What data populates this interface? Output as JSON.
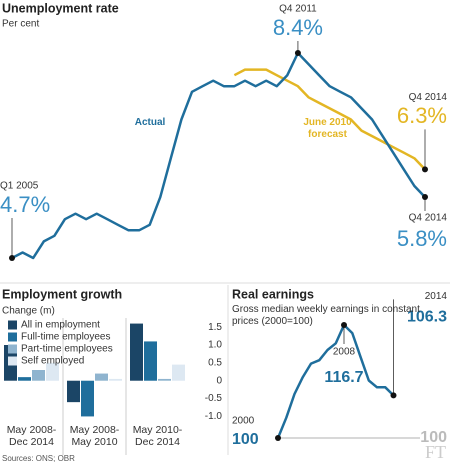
{
  "chart_data": [
    {
      "type": "line",
      "title": "Unemployment rate",
      "subtitle": "Per cent",
      "categories": [
        "Q1 2005",
        null,
        null,
        null,
        null,
        null,
        null,
        null,
        null,
        null,
        null,
        null,
        null,
        null,
        null,
        null,
        null,
        null,
        null,
        null,
        null,
        null,
        null,
        null,
        null,
        null,
        null,
        "Q4 2011",
        null,
        null,
        null,
        null,
        null,
        null,
        null,
        null,
        null,
        null,
        null,
        "Q4 2014"
      ],
      "series": [
        {
          "name": "Actual",
          "color": "#1f6e9c",
          "values": [
            4.7,
            4.8,
            4.7,
            5.0,
            5.1,
            5.4,
            5.5,
            5.4,
            5.5,
            5.4,
            5.3,
            5.2,
            5.2,
            5.3,
            5.8,
            6.5,
            7.2,
            7.7,
            7.8,
            7.9,
            7.8,
            7.8,
            7.9,
            7.8,
            7.9,
            7.8,
            8.0,
            8.4,
            8.2,
            8.0,
            7.8,
            7.7,
            7.6,
            7.4,
            7.2,
            6.9,
            6.6,
            6.3,
            6.0,
            5.8
          ],
          "value_labels": [
            "4.7%",
            null,
            null,
            null,
            null,
            null,
            null,
            null,
            null,
            null,
            null,
            null,
            null,
            null,
            null,
            null,
            null,
            null,
            null,
            null,
            null,
            null,
            null,
            null,
            null,
            null,
            null,
            "8.4%",
            null,
            null,
            null,
            null,
            null,
            null,
            null,
            null,
            null,
            null,
            null,
            "5.8%"
          ]
        },
        {
          "name": "June 2010 forecast",
          "color": "#e3b624",
          "values": [
            null,
            null,
            null,
            null,
            null,
            null,
            null,
            null,
            null,
            null,
            null,
            null,
            null,
            null,
            null,
            null,
            null,
            null,
            null,
            null,
            null,
            8.0,
            8.1,
            8.1,
            8.1,
            8.0,
            7.9,
            7.8,
            7.6,
            7.5,
            7.4,
            7.3,
            7.2,
            7.0,
            6.9,
            6.8,
            6.7,
            6.6,
            6.5,
            6.3
          ],
          "value_labels": [
            null,
            null,
            null,
            null,
            null,
            null,
            null,
            null,
            null,
            null,
            null,
            null,
            null,
            null,
            null,
            null,
            null,
            null,
            null,
            null,
            null,
            null,
            null,
            null,
            null,
            null,
            null,
            null,
            null,
            null,
            null,
            null,
            null,
            null,
            null,
            null,
            null,
            null,
            null,
            "6.3%"
          ]
        }
      ]
    },
    {
      "type": "bar",
      "title": "Employment growth",
      "y_label": "Change (m)",
      "categories": [
        "May 2008-Dec 2014",
        "May 2008-May 2010",
        "May 2010-Dec 2014"
      ],
      "series": [
        {
          "name": "All in employment",
          "color": "#1b4566",
          "values": [
            1.0,
            -0.6,
            1.6
          ]
        },
        {
          "name": "Full-time employees",
          "color": "#1f6e9c",
          "values": [
            0.1,
            -1.0,
            1.1
          ]
        },
        {
          "name": "Part-time employees",
          "color": "#8fb4cf",
          "values": [
            0.3,
            0.2,
            0.05
          ]
        },
        {
          "name": "Self employed",
          "color": "#dde8f2",
          "values": [
            0.5,
            0.05,
            0.45
          ]
        }
      ],
      "ylim": [
        -1.1,
        1.7
      ],
      "yticks": [
        1.5,
        {
          "value": 1,
          "label": "1.0"
        },
        0.5,
        0,
        -0.5,
        {
          "value": -1,
          "label": "-1.0"
        }
      ],
      "legend": "top-left"
    },
    {
      "type": "line",
      "title": "Real earnings",
      "subtitle": "Gross median weekly earnings in constant prices (2000=100)",
      "categories": [
        "2000",
        null,
        null,
        null,
        null,
        null,
        null,
        null,
        "2008",
        null,
        null,
        null,
        null,
        null,
        "2014"
      ],
      "series": [
        {
          "color": "#1f6e9c",
          "values": [
            100,
            103,
            106.5,
            109,
            111,
            111.5,
            113,
            114,
            116.7,
            115.5,
            112,
            108.5,
            107.5,
            107.5,
            106.3
          ]
        }
      ],
      "reference_line": 100
    }
  ],
  "source": "Sources: ONS; OBR",
  "logo": "FT"
}
